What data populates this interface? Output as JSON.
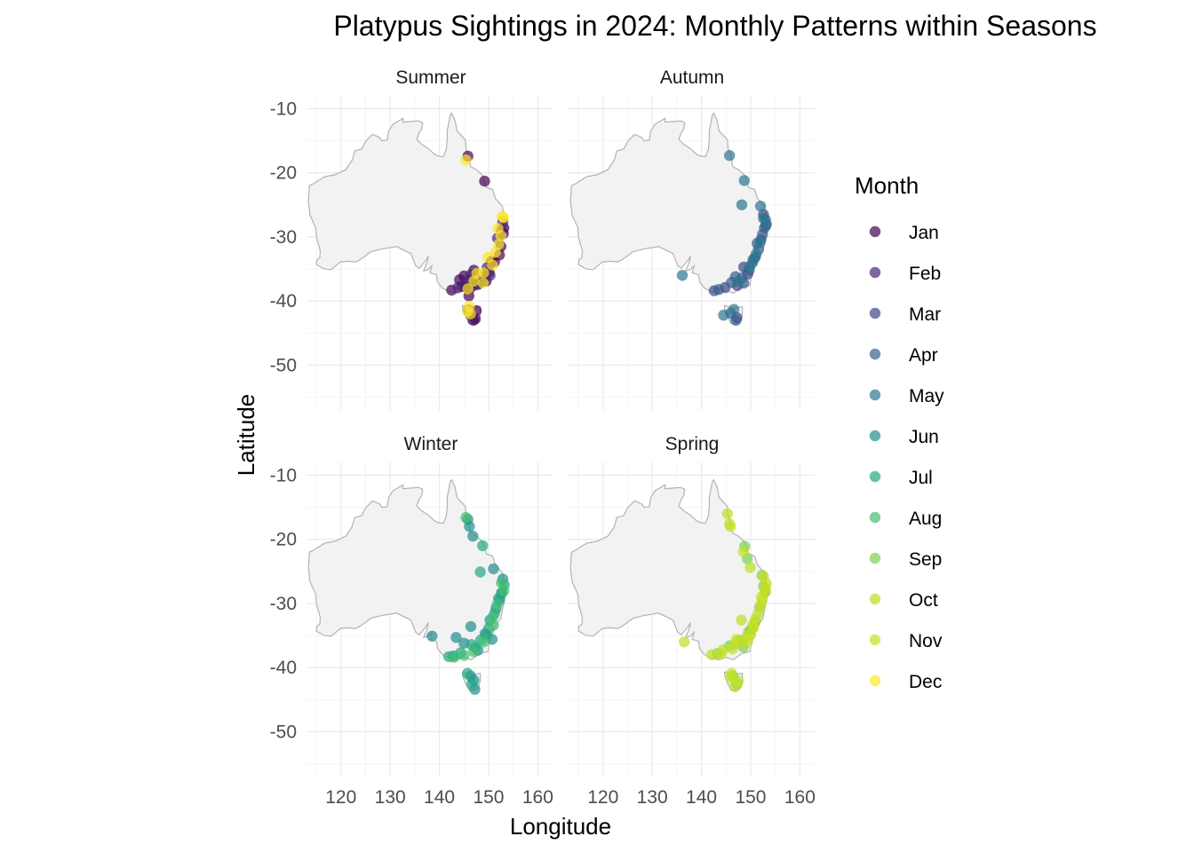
{
  "chart_data": {
    "type": "scatter",
    "title": "Platypus Sightings in 2024: Monthly Patterns within Seasons",
    "xlabel": "Longitude",
    "ylabel": "Latitude",
    "xlim": [
      113,
      163
    ],
    "ylim": [
      -57,
      -8
    ],
    "x_ticks": [
      "120",
      "130",
      "140",
      "150",
      "160"
    ],
    "y_ticks": [
      "-10",
      "-20",
      "-30",
      "-40",
      "-50"
    ],
    "x_tick_values": [
      120,
      130,
      140,
      150,
      160
    ],
    "y_tick_values": [
      -10,
      -20,
      -30,
      -40,
      -50
    ],
    "grid": true,
    "legend_title": "Month",
    "legend_position": "right",
    "legend": [
      {
        "name": "Jan",
        "color": "#440154"
      },
      {
        "name": "Feb",
        "color": "#482576"
      },
      {
        "name": "Mar",
        "color": "#414487"
      },
      {
        "name": "Apr",
        "color": "#35608D"
      },
      {
        "name": "May",
        "color": "#2A788E"
      },
      {
        "name": "Jun",
        "color": "#21908C"
      },
      {
        "name": "Jul",
        "color": "#22A884"
      },
      {
        "name": "Aug",
        "color": "#43BF71"
      },
      {
        "name": "Sep",
        "color": "#7AD151"
      },
      {
        "name": "Oct",
        "color": "#BBDF27"
      },
      {
        "name": "Nov",
        "color": "#C5E021"
      },
      {
        "name": "Dec",
        "color": "#FDE725"
      }
    ],
    "panels": [
      {
        "season": "Summer",
        "series": [
          {
            "month": "Jan",
            "points": [
              [
                145.8,
                -17.4
              ],
              [
                149.2,
                -21.3
              ],
              [
                147.0,
                -35.2
              ],
              [
                145.3,
                -37.8
              ],
              [
                146.2,
                -38.0
              ],
              [
                144.6,
                -37.7
              ],
              [
                142.5,
                -38.3
              ],
              [
                147.5,
                -41.5
              ],
              [
                146.9,
                -43.0
              ],
              [
                147.3,
                -42.8
              ],
              [
                150.6,
                -33.8
              ],
              [
                151.2,
                -33.9
              ],
              [
                152.5,
                -31.5
              ],
              [
                153.1,
                -28.6
              ],
              [
                148.8,
                -36.2
              ],
              [
                146.6,
                -36.6
              ],
              [
                147.9,
                -37.4
              ],
              [
                144.1,
                -36.7
              ],
              [
                150.1,
                -35.5
              ],
              [
                149.5,
                -36.9
              ],
              [
                145.0,
                -36.1
              ],
              [
                146.0,
                -39.2
              ],
              [
                153.0,
                -29.5
              ],
              [
                152.2,
                -32.8
              ]
            ]
          },
          {
            "month": "Feb",
            "points": [
              [
                152.9,
                -27.6
              ],
              [
                151.8,
                -30.2
              ],
              [
                149.7,
                -34.8
              ],
              [
                146.4,
                -35.9
              ],
              [
                147.2,
                -37.5
              ],
              [
                145.9,
                -41.4
              ],
              [
                146.5,
                -42.3
              ],
              [
                143.8,
                -37.9
              ],
              [
                150.3,
                -36.0
              ],
              [
                152.6,
                -29.0
              ],
              [
                148.3,
                -37.0
              ],
              [
                145.5,
                -36.9
              ]
            ]
          },
          {
            "month": "Dec",
            "points": [
              [
                145.4,
                -18.0
              ],
              [
                153.0,
                -27.0
              ],
              [
                152.5,
                -29.8
              ],
              [
                152.0,
                -31.2
              ],
              [
                151.4,
                -32.4
              ],
              [
                150.8,
                -34.4
              ],
              [
                149.0,
                -35.6
              ],
              [
                147.0,
                -36.9
              ],
              [
                145.8,
                -38.1
              ],
              [
                146.1,
                -40.8
              ],
              [
                145.7,
                -41.6
              ],
              [
                146.3,
                -42.0
              ],
              [
                148.9,
                -37.2
              ],
              [
                151.9,
                -28.7
              ],
              [
                152.8,
                -26.8
              ],
              [
                149.9,
                -33.2
              ],
              [
                147.6,
                -35.7
              ]
            ]
          }
        ]
      },
      {
        "season": "Autumn",
        "series": [
          {
            "month": "Mar",
            "points": [
              [
                152.6,
                -26.5
              ],
              [
                152.1,
                -30.4
              ],
              [
                150.9,
                -33.2
              ],
              [
                149.4,
                -35.8
              ],
              [
                147.3,
                -37.6
              ],
              [
                144.8,
                -37.9
              ],
              [
                142.6,
                -38.4
              ],
              [
                147.2,
                -42.6
              ],
              [
                153.1,
                -28.2
              ],
              [
                148.6,
                -34.7
              ]
            ]
          },
          {
            "month": "Apr",
            "points": [
              [
                153.0,
                -27.3
              ],
              [
                152.4,
                -29.6
              ],
              [
                151.6,
                -31.9
              ],
              [
                150.4,
                -34.0
              ],
              [
                148.2,
                -36.4
              ],
              [
                146.1,
                -37.1
              ],
              [
                143.5,
                -38.2
              ],
              [
                145.9,
                -41.9
              ],
              [
                147.0,
                -43.0
              ],
              [
                148.6,
                -37.2
              ],
              [
                151.3,
                -31.0
              ],
              [
                152.8,
                -28.6
              ],
              [
                146.9,
                -36.2
              ],
              [
                149.7,
                -35.2
              ]
            ]
          },
          {
            "month": "May",
            "points": [
              [
                145.7,
                -17.3
              ],
              [
                148.7,
                -21.2
              ],
              [
                148.2,
                -25.0
              ],
              [
                152.0,
                -25.2
              ],
              [
                153.2,
                -28.0
              ],
              [
                151.9,
                -30.9
              ],
              [
                151.1,
                -32.7
              ],
              [
                149.8,
                -34.6
              ],
              [
                147.6,
                -36.9
              ],
              [
                136.1,
                -36.0
              ],
              [
                144.5,
                -42.2
              ],
              [
                146.6,
                -41.3
              ],
              [
                152.6,
                -27.1
              ],
              [
                150.5,
                -33.5
              ]
            ]
          }
        ]
      },
      {
        "season": "Winter",
        "series": [
          {
            "month": "Jun",
            "points": [
              [
                145.8,
                -16.9
              ],
              [
                146.1,
                -18.0
              ],
              [
                146.8,
                -19.5
              ],
              [
                151.0,
                -24.6
              ],
              [
                152.9,
                -26.2
              ],
              [
                152.6,
                -28.4
              ],
              [
                151.5,
                -30.8
              ],
              [
                150.3,
                -32.6
              ],
              [
                149.3,
                -34.7
              ],
              [
                146.4,
                -33.6
              ],
              [
                143.4,
                -35.3
              ],
              [
                145.0,
                -36.2
              ],
              [
                147.8,
                -37.3
              ],
              [
                138.5,
                -35.1
              ],
              [
                146.3,
                -41.3
              ],
              [
                147.0,
                -42.0
              ],
              [
                147.2,
                -43.4
              ],
              [
                142.8,
                -38.2
              ],
              [
                152.2,
                -29.5
              ],
              [
                150.7,
                -35.6
              ]
            ]
          },
          {
            "month": "Jul",
            "points": [
              [
                148.8,
                -21.0
              ],
              [
                148.3,
                -25.1
              ],
              [
                153.2,
                -27.1
              ],
              [
                152.0,
                -29.2
              ],
              [
                151.2,
                -31.6
              ],
              [
                150.0,
                -33.9
              ],
              [
                148.4,
                -35.7
              ],
              [
                146.5,
                -36.4
              ],
              [
                144.3,
                -37.7
              ],
              [
                141.9,
                -38.3
              ],
              [
                145.7,
                -40.9
              ],
              [
                146.6,
                -42.6
              ],
              [
                152.7,
                -28.3
              ],
              [
                149.6,
                -34.9
              ],
              [
                147.3,
                -36.9
              ]
            ]
          },
          {
            "month": "Aug",
            "points": [
              [
                152.6,
                -26.8
              ],
              [
                151.7,
                -30.2
              ],
              [
                150.8,
                -32.2
              ],
              [
                149.0,
                -36.0
              ],
              [
                147.0,
                -37.5
              ],
              [
                145.0,
                -38.1
              ],
              [
                143.0,
                -38.4
              ],
              [
                145.4,
                -16.6
              ],
              [
                153.1,
                -28.0
              ],
              [
                151.0,
                -33.4
              ]
            ]
          }
        ]
      },
      {
        "season": "Spring",
        "series": [
          {
            "month": "Sep",
            "points": [
              [
                148.8,
                -21.1
              ],
              [
                149.3,
                -23.0
              ],
              [
                152.3,
                -25.6
              ],
              [
                153.0,
                -28.2
              ],
              [
                151.8,
                -30.6
              ],
              [
                150.9,
                -32.9
              ],
              [
                149.6,
                -34.4
              ],
              [
                147.9,
                -35.8
              ],
              [
                145.7,
                -36.6
              ],
              [
                143.2,
                -37.8
              ],
              [
                146.4,
                -41.3
              ],
              [
                147.2,
                -42.6
              ],
              [
                152.6,
                -27.3
              ],
              [
                150.2,
                -34.0
              ],
              [
                148.5,
                -36.8
              ]
            ]
          },
          {
            "month": "Oct",
            "points": [
              [
                145.3,
                -16.0
              ],
              [
                145.7,
                -17.6
              ],
              [
                149.9,
                -24.4
              ],
              [
                153.2,
                -26.9
              ],
              [
                152.3,
                -29.6
              ],
              [
                151.5,
                -31.6
              ],
              [
                150.4,
                -33.4
              ],
              [
                149.0,
                -35.3
              ],
              [
                146.8,
                -36.3
              ],
              [
                144.4,
                -37.2
              ],
              [
                142.1,
                -38.0
              ],
              [
                136.5,
                -36.0
              ],
              [
                146.1,
                -40.9
              ],
              [
                146.8,
                -43.0
              ],
              [
                152.9,
                -28.1
              ],
              [
                148.1,
                -32.6
              ]
            ]
          },
          {
            "month": "Nov",
            "points": [
              [
                145.9,
                -18.0
              ],
              [
                148.5,
                -21.9
              ],
              [
                152.6,
                -25.8
              ],
              [
                153.0,
                -27.6
              ],
              [
                152.0,
                -30.4
              ],
              [
                151.0,
                -32.4
              ],
              [
                150.0,
                -34.9
              ],
              [
                148.4,
                -36.1
              ],
              [
                146.3,
                -37.1
              ],
              [
                144.0,
                -37.9
              ],
              [
                147.5,
                -42.1
              ],
              [
                145.9,
                -41.6
              ],
              [
                152.2,
                -29.0
              ],
              [
                150.6,
                -33.8
              ],
              [
                147.1,
                -35.6
              ],
              [
                149.4,
                -35.9
              ]
            ]
          }
        ]
      }
    ]
  }
}
